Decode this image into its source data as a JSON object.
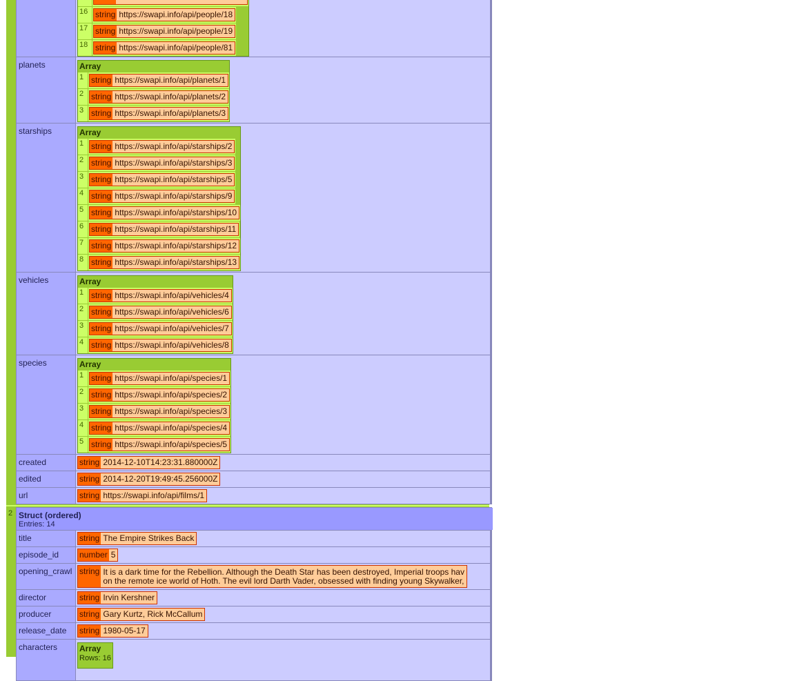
{
  "struct1": {
    "characters_rows": [
      {
        "index": "16",
        "type": "string",
        "value": "https://swapi.info/api/people/18"
      },
      {
        "index": "17",
        "type": "string",
        "value": "https://swapi.info/api/people/19"
      },
      {
        "index": "18",
        "type": "string",
        "value": "https://swapi.info/api/people/81"
      }
    ],
    "fields": [
      {
        "key": "planets",
        "array_label": "Array",
        "items": [
          {
            "index": "1",
            "type": "string",
            "value": "https://swapi.info/api/planets/1"
          },
          {
            "index": "2",
            "type": "string",
            "value": "https://swapi.info/api/planets/2"
          },
          {
            "index": "3",
            "type": "string",
            "value": "https://swapi.info/api/planets/3"
          }
        ]
      },
      {
        "key": "starships",
        "array_label": "Array",
        "items": [
          {
            "index": "1",
            "type": "string",
            "value": "https://swapi.info/api/starships/2"
          },
          {
            "index": "2",
            "type": "string",
            "value": "https://swapi.info/api/starships/3"
          },
          {
            "index": "3",
            "type": "string",
            "value": "https://swapi.info/api/starships/5"
          },
          {
            "index": "4",
            "type": "string",
            "value": "https://swapi.info/api/starships/9"
          },
          {
            "index": "5",
            "type": "string",
            "value": "https://swapi.info/api/starships/10"
          },
          {
            "index": "6",
            "type": "string",
            "value": "https://swapi.info/api/starships/11"
          },
          {
            "index": "7",
            "type": "string",
            "value": "https://swapi.info/api/starships/12"
          },
          {
            "index": "8",
            "type": "string",
            "value": "https://swapi.info/api/starships/13"
          }
        ]
      },
      {
        "key": "vehicles",
        "array_label": "Array",
        "items": [
          {
            "index": "1",
            "type": "string",
            "value": "https://swapi.info/api/vehicles/4"
          },
          {
            "index": "2",
            "type": "string",
            "value": "https://swapi.info/api/vehicles/6"
          },
          {
            "index": "3",
            "type": "string",
            "value": "https://swapi.info/api/vehicles/7"
          },
          {
            "index": "4",
            "type": "string",
            "value": "https://swapi.info/api/vehicles/8"
          }
        ]
      },
      {
        "key": "species",
        "array_label": "Array",
        "items": [
          {
            "index": "1",
            "type": "string",
            "value": "https://swapi.info/api/species/1"
          },
          {
            "index": "2",
            "type": "string",
            "value": "https://swapi.info/api/species/2"
          },
          {
            "index": "3",
            "type": "string",
            "value": "https://swapi.info/api/species/3"
          },
          {
            "index": "4",
            "type": "string",
            "value": "https://swapi.info/api/species/4"
          },
          {
            "index": "5",
            "type": "string",
            "value": "https://swapi.info/api/species/5"
          }
        ]
      },
      {
        "key": "created",
        "type": "string",
        "value": "2014-12-10T14:23:31.880000Z"
      },
      {
        "key": "edited",
        "type": "string",
        "value": "2014-12-20T19:49:45.256000Z"
      },
      {
        "key": "url",
        "type": "string",
        "value": "https://swapi.info/api/films/1"
      }
    ]
  },
  "struct2": {
    "index": "2",
    "header": "Struct (ordered)",
    "entries": "Entries: 14",
    "fields": [
      {
        "key": "title",
        "type": "string",
        "value": "The Empire Strikes Back"
      },
      {
        "key": "episode_id",
        "type": "number",
        "value": "5"
      },
      {
        "key": "opening_crawl",
        "type": "string",
        "value_lines": [
          "It is a dark time for the Rebellion. Although the Death Star has been destroyed, Imperial troops hav",
          "on the remote ice world of Hoth. The evil lord Darth Vader, obsessed with finding young Skywalker,"
        ]
      },
      {
        "key": "director",
        "type": "string",
        "value": "Irvin Kershner"
      },
      {
        "key": "producer",
        "type": "string",
        "value": "Gary Kurtz, Rick McCallum"
      },
      {
        "key": "release_date",
        "type": "string",
        "value": "1980-05-17"
      },
      {
        "key": "characters",
        "array_label": "Array",
        "rows_label": "Rows: 16"
      }
    ]
  }
}
